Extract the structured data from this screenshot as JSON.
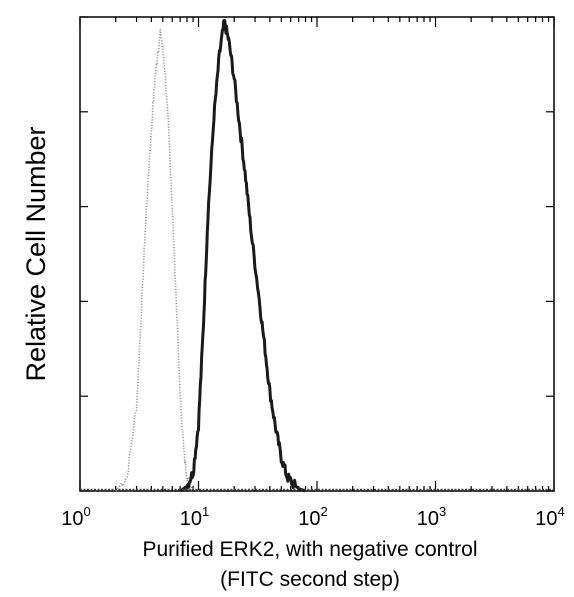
{
  "chart_data": {
    "type": "line",
    "title": "",
    "xlabel": "Purified ERK2, with negative control",
    "xlabel_line2": "(FITC second step)",
    "ylabel": "Relative Cell Number",
    "x_scale": "log",
    "xlim": [
      1,
      10000
    ],
    "ylim": [
      0,
      100
    ],
    "x_ticks": [
      {
        "base": "10",
        "exp": "0",
        "value": 1
      },
      {
        "base": "10",
        "exp": "1",
        "value": 10
      },
      {
        "base": "10",
        "exp": "2",
        "value": 100
      },
      {
        "base": "10",
        "exp": "3",
        "value": 1000
      },
      {
        "base": "10",
        "exp": "4",
        "value": 10000
      }
    ],
    "y_ticks": [
      0,
      20,
      40,
      60,
      80,
      100
    ],
    "y_tick_labels_shown": false,
    "grid": false,
    "legend": "none",
    "series": [
      {
        "style": "dotted-gray",
        "color": "#9a9a9a",
        "x": [
          2.0,
          2.5,
          3.0,
          3.3,
          3.6,
          3.9,
          4.2,
          4.5,
          4.8,
          5.2,
          5.6,
          6.0,
          6.5,
          7.0,
          7.6,
          8.2,
          9.0,
          10.0
        ],
        "y": [
          0,
          3,
          18,
          38,
          58,
          72,
          84,
          92,
          97,
          89,
          76,
          60,
          40,
          20,
          7,
          2,
          0.5,
          0
        ]
      },
      {
        "style": "solid-black",
        "color": "#1a1a1a",
        "x": [
          7.0,
          8.0,
          9.0,
          10.0,
          11.0,
          12.0,
          13.5,
          15.0,
          16.5,
          18.0,
          20.0,
          22.5,
          25.0,
          28.0,
          32.0,
          36.0,
          40.0,
          45.0,
          50.0,
          56.0,
          63.0,
          70.0,
          80.0
        ],
        "y": [
          0,
          1,
          4,
          14,
          35,
          58,
          79,
          92,
          99,
          95,
          87,
          76,
          66,
          54,
          42,
          31,
          21,
          13,
          7,
          3,
          1.5,
          0.5,
          0
        ]
      }
    ]
  }
}
